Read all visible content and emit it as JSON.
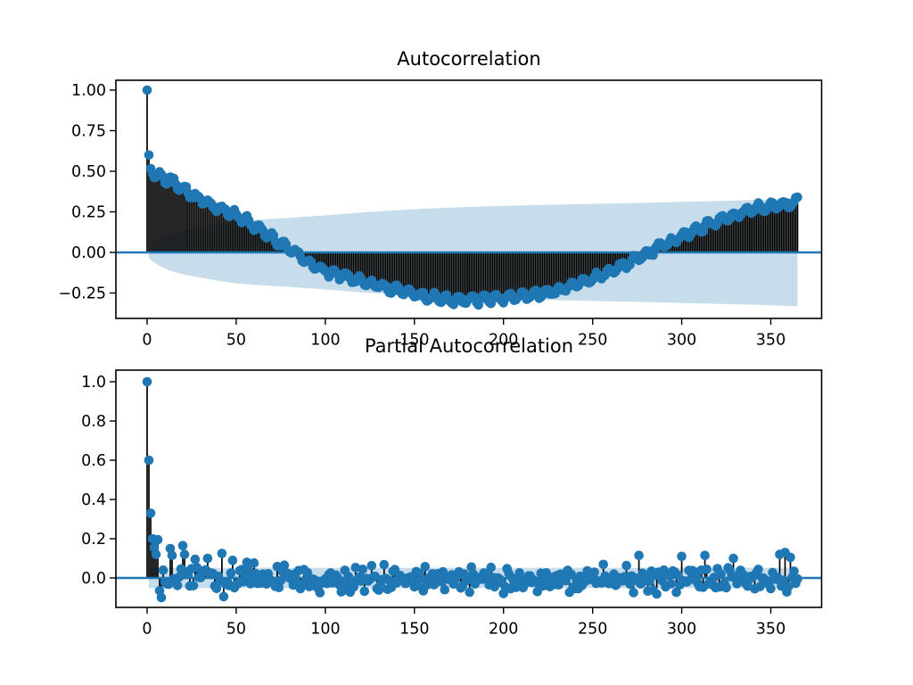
{
  "figure": {
    "background": "#ffffff"
  },
  "colors": {
    "marker": "#1f77b4",
    "stem": "#000000",
    "zero_line": "#1f77b4",
    "band": "#1f77b4",
    "band_opacity": 0.25,
    "axis": "#000000",
    "text": "#000000"
  },
  "chart_data": [
    {
      "id": "acf",
      "type": "stem",
      "title": "Autocorrelation",
      "n_lags": 365,
      "xlim": [
        -17.5,
        378.5
      ],
      "ylim": [
        -0.4066,
        1.0604
      ],
      "x_tick_values": [
        0,
        50,
        100,
        150,
        200,
        250,
        300,
        350
      ],
      "x_tick_labels": [
        "0",
        "50",
        "100",
        "150",
        "200",
        "250",
        "300",
        "350"
      ],
      "y_tick_values": [
        1.0,
        0.75,
        0.5,
        0.25,
        0.0,
        -0.25
      ],
      "y_tick_labels": [
        "1.00",
        "0.75",
        "0.50",
        "0.25",
        "0.00",
        "−0.25"
      ],
      "grid": false,
      "legend": null,
      "zero_line": true,
      "series": {
        "name": "acf-values",
        "trend_points": [
          [
            0,
            1.0
          ],
          [
            1,
            0.6
          ],
          [
            2,
            0.53
          ],
          [
            3,
            0.5
          ],
          [
            4,
            0.48
          ],
          [
            5,
            0.465
          ],
          [
            7,
            0.47
          ],
          [
            10,
            0.455
          ],
          [
            14,
            0.44
          ],
          [
            17,
            0.42
          ],
          [
            20,
            0.4
          ],
          [
            25,
            0.36
          ],
          [
            30,
            0.325
          ],
          [
            35,
            0.3
          ],
          [
            40,
            0.28
          ],
          [
            45,
            0.255
          ],
          [
            50,
            0.23
          ],
          [
            55,
            0.2
          ],
          [
            60,
            0.165
          ],
          [
            65,
            0.13
          ],
          [
            70,
            0.095
          ],
          [
            75,
            0.055
          ],
          [
            80,
            0.02
          ],
          [
            85,
            -0.02
          ],
          [
            90,
            -0.06
          ],
          [
            95,
            -0.09
          ],
          [
            100,
            -0.115
          ],
          [
            110,
            -0.145
          ],
          [
            120,
            -0.175
          ],
          [
            130,
            -0.205
          ],
          [
            140,
            -0.235
          ],
          [
            150,
            -0.258
          ],
          [
            160,
            -0.275
          ],
          [
            170,
            -0.29
          ],
          [
            180,
            -0.295
          ],
          [
            190,
            -0.29
          ],
          [
            200,
            -0.28
          ],
          [
            210,
            -0.27
          ],
          [
            220,
            -0.255
          ],
          [
            230,
            -0.235
          ],
          [
            240,
            -0.2
          ],
          [
            250,
            -0.16
          ],
          [
            260,
            -0.115
          ],
          [
            270,
            -0.065
          ],
          [
            280,
            -0.012
          ],
          [
            290,
            0.045
          ],
          [
            300,
            0.1
          ],
          [
            310,
            0.15
          ],
          [
            320,
            0.195
          ],
          [
            330,
            0.235
          ],
          [
            340,
            0.265
          ],
          [
            350,
            0.285
          ],
          [
            358,
            0.3
          ],
          [
            365,
            0.315
          ]
        ],
        "weekly_ripple": {
          "period": 7,
          "amplitude": 0.022
        },
        "noise_sd": 0.012,
        "noise_seed": 101
      },
      "confidence_band": {
        "start_lag": 1,
        "halfwidth_points": [
          [
            1,
            0.035
          ],
          [
            3,
            0.055
          ],
          [
            5,
            0.07
          ],
          [
            10,
            0.1
          ],
          [
            15,
            0.12
          ],
          [
            20,
            0.135
          ],
          [
            30,
            0.155
          ],
          [
            40,
            0.175
          ],
          [
            50,
            0.19
          ],
          [
            60,
            0.2
          ],
          [
            80,
            0.213
          ],
          [
            100,
            0.228
          ],
          [
            120,
            0.246
          ],
          [
            140,
            0.26
          ],
          [
            160,
            0.272
          ],
          [
            180,
            0.28
          ],
          [
            200,
            0.287
          ],
          [
            220,
            0.292
          ],
          [
            250,
            0.299
          ],
          [
            280,
            0.306
          ],
          [
            310,
            0.314
          ],
          [
            340,
            0.322
          ],
          [
            365,
            0.332
          ]
        ]
      }
    },
    {
      "id": "pacf",
      "type": "stem",
      "title": "Partial Autocorrelation",
      "n_lags": 365,
      "xlim": [
        -17.5,
        378.5
      ],
      "ylim": [
        -0.15,
        1.059
      ],
      "x_tick_values": [
        0,
        50,
        100,
        150,
        200,
        250,
        300,
        350
      ],
      "x_tick_labels": [
        "0",
        "50",
        "100",
        "150",
        "200",
        "250",
        "300",
        "350"
      ],
      "y_tick_values": [
        1.0,
        0.8,
        0.6,
        0.4,
        0.2,
        0.0
      ],
      "y_tick_labels": [
        "1.0",
        "0.8",
        "0.6",
        "0.4",
        "0.2",
        "0.0"
      ],
      "grid": false,
      "legend": null,
      "zero_line": true,
      "series": {
        "name": "pacf-values",
        "head_values": [
          1.0,
          0.6,
          0.33,
          0.2,
          0.155,
          0.12,
          0.195,
          -0.065,
          -0.1,
          0.04
        ],
        "spikes": {
          "13": 0.15,
          "14": 0.115,
          "20": 0.165,
          "21": 0.12,
          "27": 0.095,
          "34": 0.1,
          "42": 0.125,
          "43": -0.095,
          "48": 0.09,
          "56": 0.08,
          "276": 0.115,
          "300": 0.11,
          "313": 0.115,
          "329": 0.1,
          "355": 0.12,
          "358": 0.13,
          "361": 0.105
        },
        "noise_mean": -0.008,
        "noise_sd": 0.032,
        "clamp": [
          -0.082,
          0.1
        ],
        "noise_seed": 202
      },
      "confidence_band": {
        "start_lag": 1,
        "halfwidth_points": [
          [
            1,
            0.052
          ],
          [
            365,
            0.052
          ]
        ]
      }
    }
  ]
}
